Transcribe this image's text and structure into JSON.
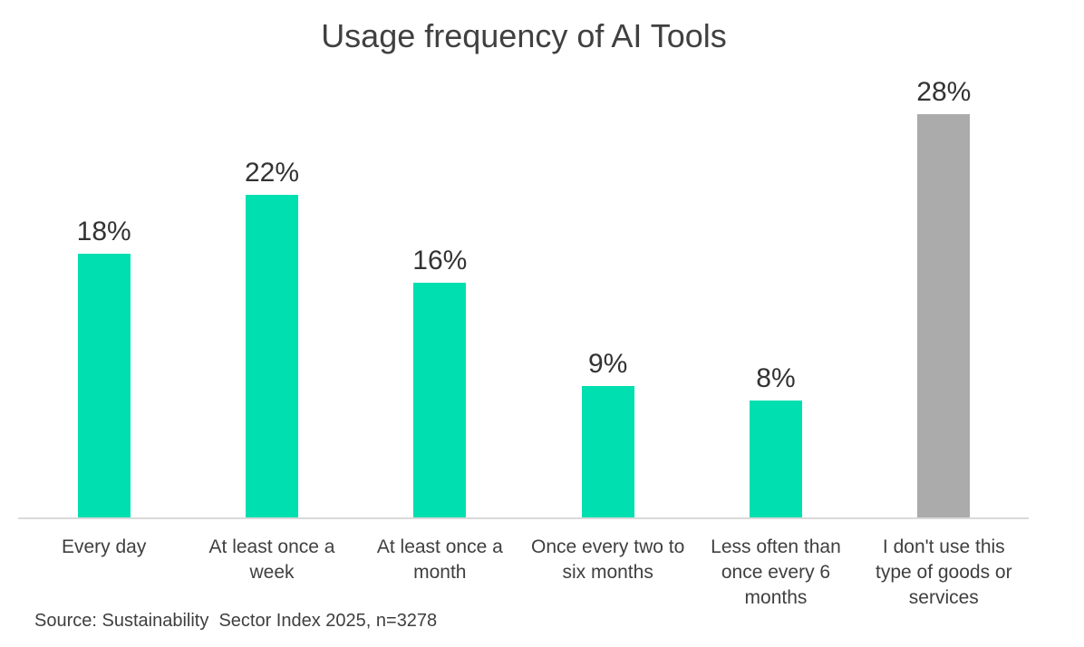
{
  "title": "Usage frequency of AI Tools",
  "colors": {
    "background": "#FFFFFF",
    "bar_teal": "#00DFB0",
    "bar_gray": "#ABABAB",
    "title_text": "#404040",
    "label_text": "#3F3F3F",
    "value_text": "#333333",
    "axis_line": "#D9D9D9"
  },
  "chart_data": {
    "type": "bar",
    "title": "Usage frequency of AI Tools",
    "categories": [
      "Every day",
      "At least once a week",
      "At least once a month",
      "Once every two to six months",
      "Less often than once every 6 months",
      "I don't use this type of goods or services"
    ],
    "values": [
      18,
      22,
      16,
      9,
      8,
      28
    ],
    "data_labels": [
      "18%",
      "22%",
      "16%",
      "9%",
      "8%",
      "28%"
    ],
    "bar_colors": [
      "#00DFB0",
      "#00DFB0",
      "#00DFB0",
      "#00DFB0",
      "#00DFB0",
      "#ABABAB"
    ],
    "xlabel": "",
    "ylabel": "",
    "ylim": [
      0,
      30
    ],
    "grid": false,
    "legend": false,
    "y_axis_visible": false,
    "value_suffix": "%",
    "source": "Source: Sustainability  Sector Index 2025, n=3278"
  }
}
